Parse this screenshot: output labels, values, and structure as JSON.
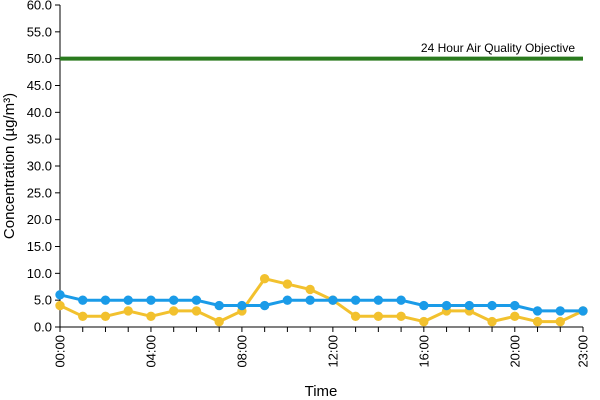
{
  "chart_data": {
    "type": "line",
    "xlabel": "Time",
    "ylabel": "Concentration (µg/m³)",
    "ylim": [
      0,
      60
    ],
    "y_ticks": [
      "0.0",
      "5.0",
      "10.0",
      "15.0",
      "20.0",
      "25.0",
      "30.0",
      "35.0",
      "40.0",
      "45.0",
      "50.0",
      "55.0",
      "60.0"
    ],
    "x": [
      "00:00",
      "01:00",
      "02:00",
      "03:00",
      "04:00",
      "05:00",
      "06:00",
      "07:00",
      "08:00",
      "09:00",
      "10:00",
      "11:00",
      "12:00",
      "13:00",
      "14:00",
      "15:00",
      "16:00",
      "17:00",
      "18:00",
      "19:00",
      "20:00",
      "21:00",
      "22:00",
      "23:00"
    ],
    "x_tick_labels": [
      "00:00",
      "04:00",
      "08:00",
      "12:00",
      "16:00",
      "20:00",
      "23:00"
    ],
    "grid": false,
    "series": [
      {
        "color": "#1a9be8",
        "values": [
          6,
          5,
          5,
          5,
          5,
          5,
          5,
          4,
          4,
          4,
          5,
          5,
          5,
          5,
          5,
          5,
          4,
          4,
          4,
          4,
          4,
          3,
          3,
          3
        ]
      },
      {
        "color": "#f2c12e",
        "values": [
          4,
          2,
          2,
          3,
          2,
          3,
          3,
          1,
          3,
          9,
          8,
          7,
          5,
          2,
          2,
          2,
          1,
          3,
          3,
          1,
          2,
          1,
          1,
          3
        ]
      }
    ],
    "reference_line": {
      "value": 50,
      "label": "24 Hour Air Quality Objective",
      "color": "#2a7a1e"
    }
  }
}
